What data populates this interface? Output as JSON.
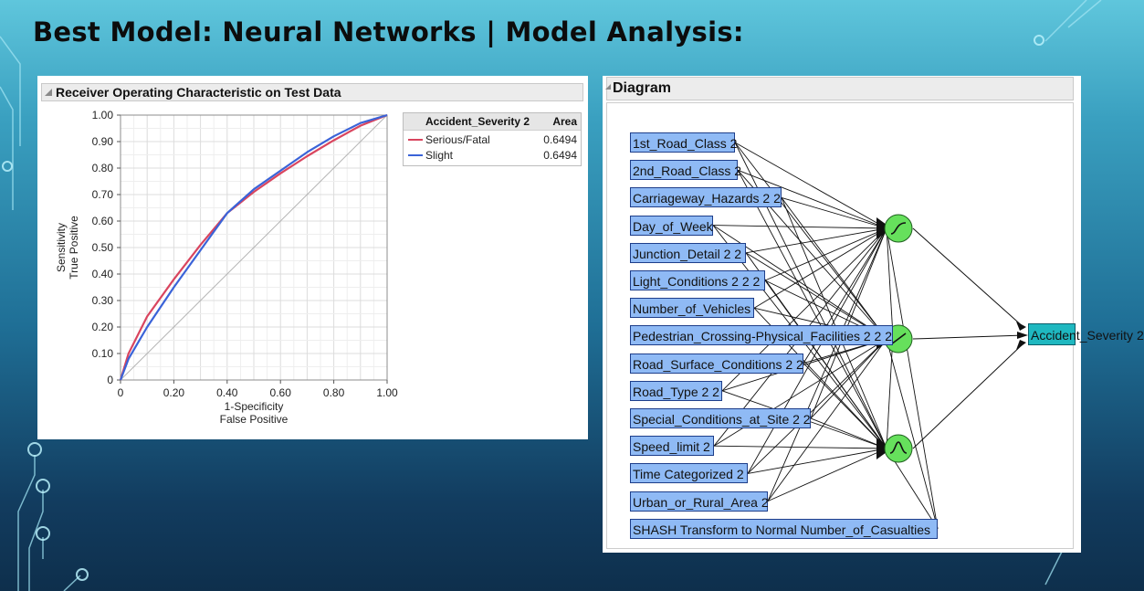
{
  "slide": {
    "title": "Best Model: Neural Networks | Model Analysis:"
  },
  "roc": {
    "header": "Receiver Operating Characteristic on Test Data",
    "legend": {
      "col1": "Accident_Severity 2",
      "col2": "Area",
      "rows": [
        {
          "name": "Serious/Fatal",
          "area": "0.6494",
          "color": "#d9455f"
        },
        {
          "name": "Slight",
          "area": "0.6494",
          "color": "#3a63d8"
        }
      ]
    }
  },
  "chart_data": {
    "type": "line",
    "title": "Receiver Operating Characteristic on Test Data",
    "xlabel": "1-Specificity",
    "xlabel2": "False Positive",
    "ylabel": "Sensitivity",
    "ylabel2": "True Positive",
    "xlim": [
      0,
      1
    ],
    "ylim": [
      0,
      1
    ],
    "xticks": [
      "0",
      "0.20",
      "0.40",
      "0.60",
      "0.80",
      "1.00"
    ],
    "yticks": [
      "0",
      "0.10",
      "0.20",
      "0.30",
      "0.40",
      "0.50",
      "0.60",
      "0.70",
      "0.80",
      "0.90",
      "1.00"
    ],
    "grid": true,
    "legend_position": "right",
    "diagonal": {
      "x": [
        0,
        1
      ],
      "y": [
        0,
        1
      ]
    },
    "series": [
      {
        "name": "Serious/Fatal",
        "color": "#d9455f",
        "x": [
          0,
          0.03,
          0.1,
          0.2,
          0.3,
          0.4,
          0.5,
          0.6,
          0.7,
          0.8,
          0.9,
          1.0
        ],
        "y": [
          0,
          0.1,
          0.24,
          0.38,
          0.51,
          0.63,
          0.71,
          0.78,
          0.845,
          0.905,
          0.96,
          1.0
        ]
      },
      {
        "name": "Slight",
        "color": "#3a63d8",
        "x": [
          0,
          0.03,
          0.1,
          0.2,
          0.3,
          0.4,
          0.5,
          0.6,
          0.7,
          0.8,
          0.9,
          1.0
        ],
        "y": [
          0,
          0.08,
          0.2,
          0.35,
          0.49,
          0.63,
          0.72,
          0.79,
          0.86,
          0.92,
          0.97,
          1.0
        ]
      }
    ]
  },
  "diagram": {
    "header": "Diagram",
    "inputs": [
      "1st_Road_Class 2",
      "2nd_Road_Class 2",
      "Carriageway_Hazards 2 2",
      "Day_of_Week",
      "Junction_Detail 2 2",
      "Light_Conditions 2 2 2",
      "Number_of_Vehicles",
      "Pedestrian_Crossing-Physical_Facilities 2 2 2",
      "Road_Surface_Conditions 2 2",
      "Road_Type 2 2",
      "Special_Conditions_at_Site 2 2",
      "Speed_limit 2",
      "Time Categorized 2",
      "Urban_or_Rural_Area 2",
      "SHASH Transform to Normal Number_of_Casualties"
    ],
    "hidden_nodes": [
      {
        "activation": "tanh",
        "icon": "sigmoid-icon"
      },
      {
        "activation": "linear",
        "icon": "linear-icon"
      },
      {
        "activation": "gaussian",
        "icon": "gaussian-icon"
      }
    ],
    "output": "Accident_Severity 2",
    "colors": {
      "input": "#8fbaf5",
      "hidden": "#66e05c",
      "output": "#1fb8c0"
    }
  }
}
